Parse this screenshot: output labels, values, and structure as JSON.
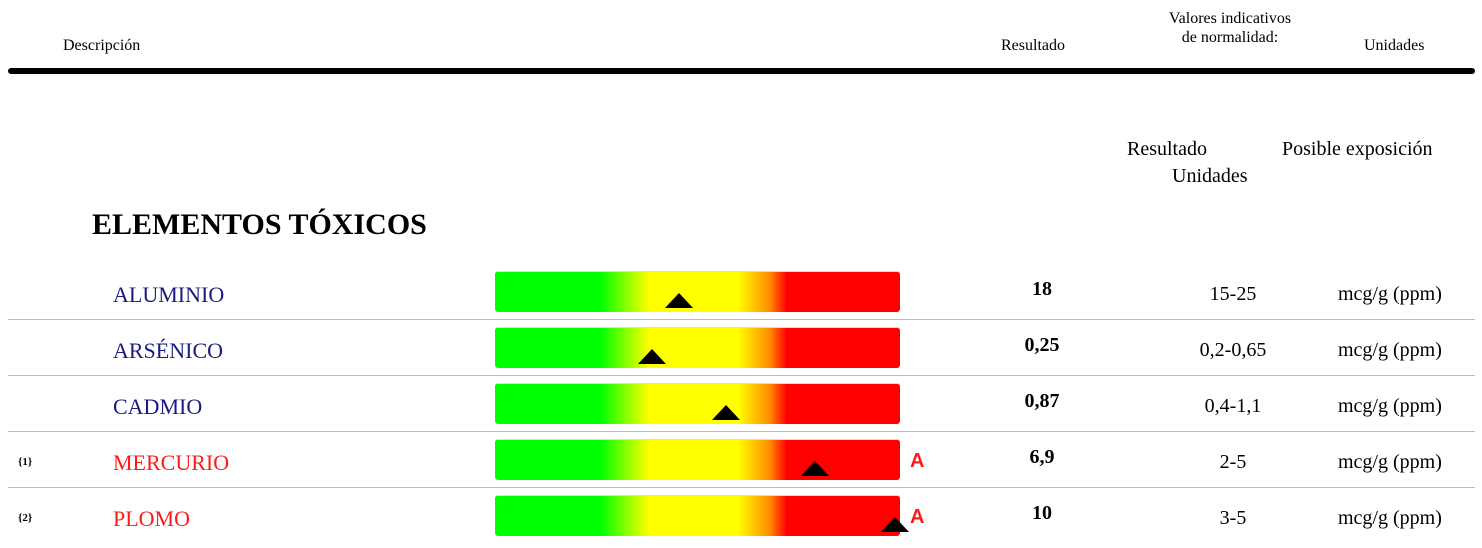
{
  "header": {
    "description": "Descripción",
    "result": "Resultado",
    "reference": [
      "Valores indicativos",
      "de normalidad:"
    ],
    "units": "Unidades"
  },
  "subheader": {
    "result": "Resultado",
    "units": "Unidades",
    "exposure": "Posible exposición"
  },
  "section": {
    "title": "ELEMENTOS TÓXICOS",
    "rows": [
      {
        "name": "ALUMINIO",
        "result": "18",
        "range": "15-25",
        "unit": "mcg/g (ppm)"
      },
      {
        "name": "ARSÉNICO",
        "result": "0,25",
        "range": "0,2-0,65",
        "unit": "mcg/g (ppm)"
      },
      {
        "name": "CADMIO",
        "result": "0,87",
        "range": "0,4-1,1",
        "unit": "mcg/g (ppm)"
      },
      {
        "note": "{1}",
        "name": "MERCURIO",
        "flag": "A",
        "result": "6,9",
        "range": "2-5",
        "unit": "mcg/g (ppm)"
      },
      {
        "note": "{2}",
        "name": "PLOMO",
        "flag": "A",
        "result": "10",
        "range": "3-5",
        "unit": "mcg/g (ppm)"
      }
    ]
  }
}
